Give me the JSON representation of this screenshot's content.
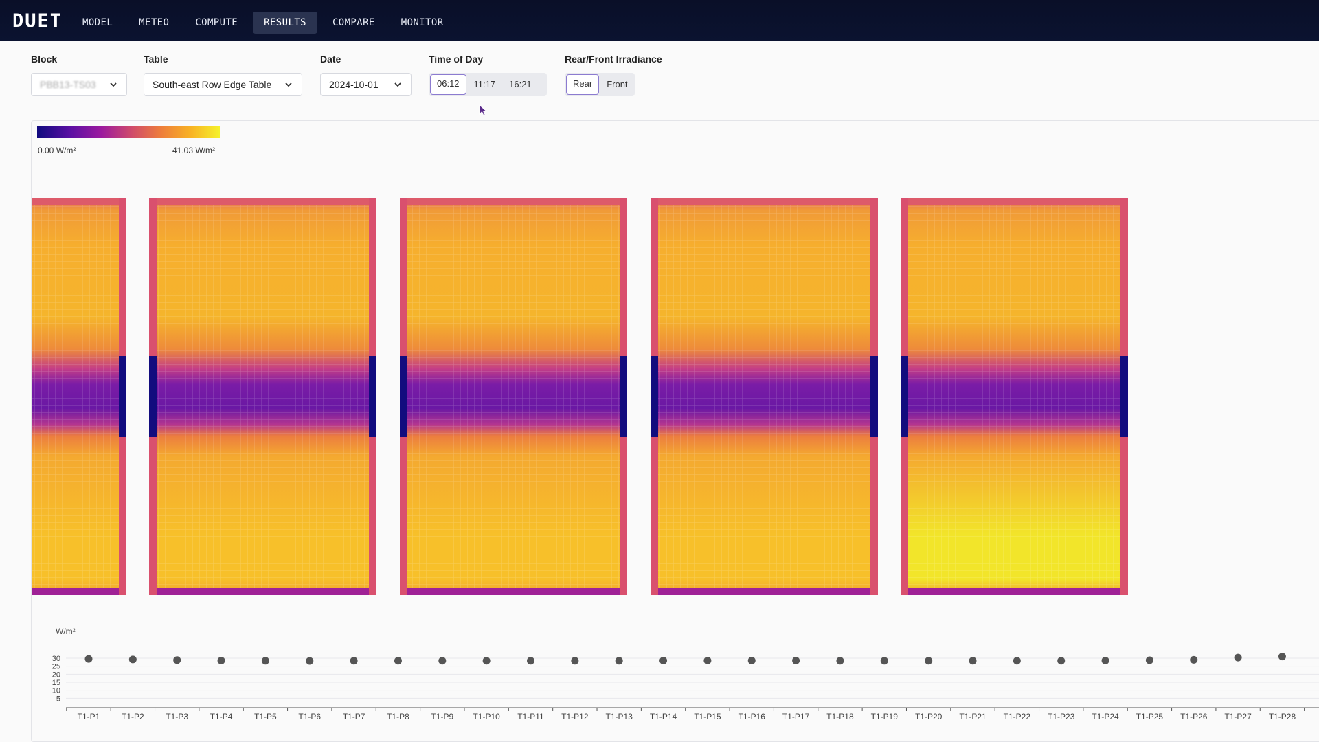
{
  "app": {
    "logo": "DUET"
  },
  "nav": [
    {
      "label": "MODEL"
    },
    {
      "label": "METEO"
    },
    {
      "label": "COMPUTE"
    },
    {
      "label": "RESULTS",
      "active": true
    },
    {
      "label": "COMPARE"
    },
    {
      "label": "MONITOR"
    }
  ],
  "controls": {
    "block": {
      "label": "Block",
      "value": "PBB13-TS03"
    },
    "table": {
      "label": "Table",
      "value": "South-east Row Edge Table"
    },
    "date": {
      "label": "Date",
      "value": "2024-10-01"
    },
    "time": {
      "label": "Time of Day",
      "options": [
        "06:12",
        "11:17",
        "16:21"
      ],
      "selected": "06:12"
    },
    "irradiance": {
      "label": "Rear/Front Irradiance",
      "options": [
        "Rear",
        "Front"
      ],
      "selected": "Rear"
    }
  },
  "legend": {
    "min_label": "0.00 W/m²",
    "max_label": "41.03 W/m²",
    "colors": [
      "#100b7f",
      "#5a0fa3",
      "#9b1a9f",
      "#d04b6a",
      "#ee7e3b",
      "#f8b224",
      "#f5f22b"
    ]
  },
  "heatmap_panels": [
    {
      "name": "panel-1",
      "intensity": 0.82,
      "partial": true
    },
    {
      "name": "panel-2",
      "intensity": 0.84
    },
    {
      "name": "panel-3",
      "intensity": 0.86
    },
    {
      "name": "panel-4",
      "intensity": 0.9
    },
    {
      "name": "panel-5",
      "intensity": 0.96
    }
  ],
  "chart_data": {
    "type": "scatter",
    "ylabel": "W/m²",
    "yticks": [
      5,
      10,
      15,
      20,
      25,
      30
    ],
    "ylim": [
      0,
      30
    ],
    "categories": [
      "T1-P1",
      "T1-P2",
      "T1-P3",
      "T1-P4",
      "T1-P5",
      "T1-P6",
      "T1-P7",
      "T1-P8",
      "T1-P9",
      "T1-P10",
      "T1-P11",
      "T1-P12",
      "T1-P13",
      "T1-P14",
      "T1-P15",
      "T1-P16",
      "T1-P17",
      "T1-P18",
      "T1-P19",
      "T1-P20",
      "T1-P21",
      "T1-P22",
      "T1-P23",
      "T1-P24",
      "T1-P25",
      "T1-P26",
      "T1-P27",
      "T1-P28"
    ],
    "values": [
      29.5,
      29.2,
      28.8,
      28.5,
      28.4,
      28.3,
      28.4,
      28.4,
      28.4,
      28.4,
      28.4,
      28.4,
      28.4,
      28.5,
      28.5,
      28.5,
      28.5,
      28.4,
      28.4,
      28.4,
      28.4,
      28.4,
      28.4,
      28.5,
      28.7,
      29.0,
      30.4,
      31.0
    ]
  }
}
